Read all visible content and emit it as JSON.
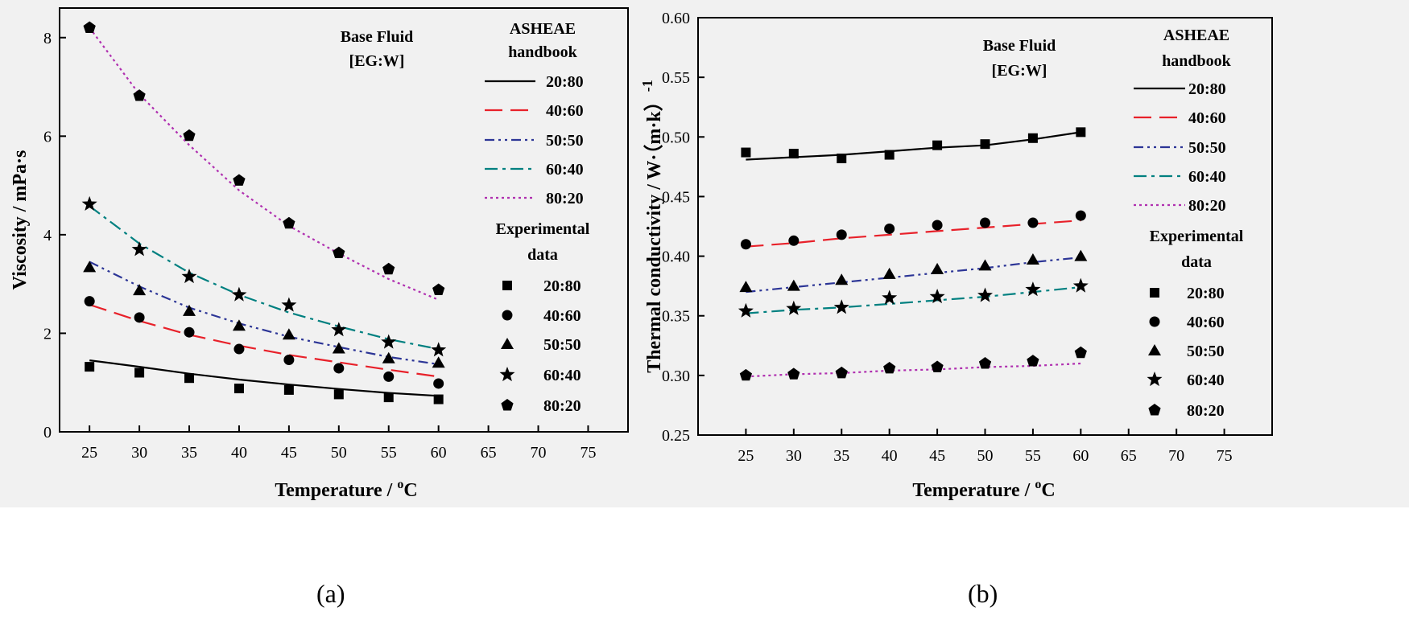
{
  "captions": [
    "(a)",
    "(b)"
  ],
  "chart_data": [
    {
      "type": "line",
      "ylabel": "Viscosity /   mPa·s",
      "xlabel_main": "Temperature / ",
      "xlabel_sup": "o",
      "xlabel_unit": "C",
      "xlim": [
        22,
        79
      ],
      "ylim": [
        0,
        8.6
      ],
      "xticks": [
        25,
        30,
        35,
        40,
        45,
        50,
        55,
        60,
        65,
        70,
        75
      ],
      "yticks": [
        0,
        2,
        4,
        6,
        8
      ],
      "ytick_labels": [
        "0",
        "2",
        "4",
        "6",
        "8"
      ],
      "annotation": [
        "Base Fluid",
        "[EG:W]"
      ],
      "legend_line_title": [
        "ASHEAE",
        "handbook"
      ],
      "legend_marker_title": [
        "Experimental",
        "data"
      ],
      "line_series": [
        {
          "name": "20:80",
          "color": "#000000",
          "style": "solid",
          "x": [
            25,
            30,
            35,
            40,
            45,
            50,
            55,
            60
          ],
          "y": [
            1.45,
            1.32,
            1.18,
            1.06,
            0.96,
            0.87,
            0.79,
            0.73
          ]
        },
        {
          "name": "40:60",
          "color": "#e8212a",
          "style": "dash",
          "x": [
            25,
            30,
            35,
            40,
            45,
            50,
            55,
            60
          ],
          "y": [
            2.58,
            2.25,
            1.97,
            1.75,
            1.56,
            1.41,
            1.26,
            1.12
          ]
        },
        {
          "name": "50:50",
          "color": "#2c3596",
          "style": "dashdotdot",
          "x": [
            25,
            30,
            35,
            40,
            45,
            50,
            55,
            60
          ],
          "y": [
            3.45,
            2.95,
            2.52,
            2.2,
            1.93,
            1.72,
            1.52,
            1.37
          ]
        },
        {
          "name": "60:40",
          "color": "#008080",
          "style": "dashdot",
          "x": [
            25,
            30,
            35,
            40,
            45,
            50,
            55,
            60
          ],
          "y": [
            4.58,
            3.82,
            3.23,
            2.78,
            2.42,
            2.14,
            1.88,
            1.68
          ]
        },
        {
          "name": "80:20",
          "color": "#b030b0",
          "style": "dot",
          "x": [
            25,
            30,
            35,
            40,
            45,
            50,
            55,
            60
          ],
          "y": [
            8.2,
            6.85,
            5.82,
            4.9,
            4.18,
            3.62,
            3.1,
            2.68
          ]
        }
      ],
      "marker_series": [
        {
          "name": "20:80",
          "marker": "square",
          "x": [
            25,
            30,
            35,
            40,
            45,
            50,
            55,
            60
          ],
          "y": [
            1.32,
            1.2,
            1.09,
            0.88,
            0.85,
            0.76,
            0.7,
            0.66
          ]
        },
        {
          "name": "40:60",
          "marker": "circle",
          "x": [
            25,
            30,
            35,
            40,
            45,
            50,
            55,
            60
          ],
          "y": [
            2.65,
            2.32,
            2.02,
            1.68,
            1.46,
            1.29,
            1.12,
            0.98
          ]
        },
        {
          "name": "50:50",
          "marker": "triangle",
          "x": [
            25,
            30,
            35,
            40,
            45,
            50,
            55,
            60
          ],
          "y": [
            3.34,
            2.87,
            2.45,
            2.15,
            1.97,
            1.69,
            1.49,
            1.4
          ]
        },
        {
          "name": "60:40",
          "marker": "star",
          "x": [
            25,
            30,
            35,
            40,
            45,
            50,
            55,
            60
          ],
          "y": [
            4.62,
            3.7,
            3.15,
            2.78,
            2.57,
            2.07,
            1.82,
            1.66
          ]
        },
        {
          "name": "80:20",
          "marker": "pentagon",
          "x": [
            25,
            30,
            35,
            40,
            45,
            50,
            55,
            60
          ],
          "y": [
            8.2,
            6.82,
            6.01,
            5.1,
            4.23,
            3.63,
            3.3,
            2.88
          ]
        }
      ]
    },
    {
      "type": "line",
      "ylabel": "Thermal conductivity  / W·（m·k）",
      "ylabel_sup": "-1",
      "xlabel_main": "Temperature / ",
      "xlabel_sup": "o",
      "xlabel_unit": "C",
      "xlim": [
        20,
        80
      ],
      "ylim": [
        0.25,
        0.6
      ],
      "xticks": [
        25,
        30,
        35,
        40,
        45,
        50,
        55,
        60,
        65,
        70,
        75
      ],
      "yticks": [
        0.25,
        0.3,
        0.35,
        0.4,
        0.45,
        0.5,
        0.55,
        0.6
      ],
      "ytick_labels": [
        "0.25",
        "0.30",
        "0.35",
        "0.40",
        "0.45",
        "0.50",
        "0.55",
        "0.60"
      ],
      "annotation": [
        "Base Fluid",
        "[EG:W]"
      ],
      "legend_line_title": [
        "ASHEAE",
        "handbook"
      ],
      "legend_marker_title": [
        "Experimental",
        "data"
      ],
      "line_series": [
        {
          "name": "20:80",
          "color": "#000000",
          "style": "solid",
          "x": [
            25,
            30,
            35,
            40,
            45,
            50,
            55,
            60
          ],
          "y": [
            0.481,
            0.483,
            0.485,
            0.488,
            0.491,
            0.493,
            0.498,
            0.504
          ]
        },
        {
          "name": "40:60",
          "color": "#e8212a",
          "style": "dash",
          "x": [
            25,
            30,
            35,
            40,
            45,
            50,
            55,
            60
          ],
          "y": [
            0.408,
            0.411,
            0.415,
            0.418,
            0.421,
            0.424,
            0.427,
            0.43
          ]
        },
        {
          "name": "50:50",
          "color": "#2c3596",
          "style": "dashdotdot",
          "x": [
            25,
            30,
            35,
            40,
            45,
            50,
            55,
            60
          ],
          "y": [
            0.37,
            0.374,
            0.378,
            0.382,
            0.386,
            0.39,
            0.395,
            0.399
          ]
        },
        {
          "name": "60:40",
          "color": "#008080",
          "style": "dashdot",
          "x": [
            25,
            30,
            35,
            40,
            45,
            50,
            55,
            60
          ],
          "y": [
            0.352,
            0.355,
            0.357,
            0.36,
            0.363,
            0.366,
            0.37,
            0.374
          ]
        },
        {
          "name": "80:20",
          "color": "#b030b0",
          "style": "dot",
          "x": [
            25,
            30,
            35,
            40,
            45,
            50,
            55,
            60
          ],
          "y": [
            0.299,
            0.301,
            0.302,
            0.304,
            0.305,
            0.307,
            0.308,
            0.31
          ]
        }
      ],
      "marker_series": [
        {
          "name": "20:80",
          "marker": "square",
          "x": [
            25,
            30,
            35,
            40,
            45,
            50,
            55,
            60
          ],
          "y": [
            0.487,
            0.486,
            0.482,
            0.485,
            0.493,
            0.494,
            0.499,
            0.504
          ]
        },
        {
          "name": "40:60",
          "marker": "circle",
          "x": [
            25,
            30,
            35,
            40,
            45,
            50,
            55,
            60
          ],
          "y": [
            0.41,
            0.413,
            0.418,
            0.423,
            0.426,
            0.428,
            0.428,
            0.434
          ]
        },
        {
          "name": "50:50",
          "marker": "triangle",
          "x": [
            25,
            30,
            35,
            40,
            45,
            50,
            55,
            60
          ],
          "y": [
            0.374,
            0.375,
            0.38,
            0.385,
            0.389,
            0.392,
            0.397,
            0.4
          ]
        },
        {
          "name": "60:40",
          "marker": "star",
          "x": [
            25,
            30,
            35,
            40,
            45,
            50,
            55,
            60
          ],
          "y": [
            0.354,
            0.356,
            0.357,
            0.365,
            0.366,
            0.367,
            0.372,
            0.375
          ]
        },
        {
          "name": "80:20",
          "marker": "pentagon",
          "x": [
            25,
            30,
            35,
            40,
            45,
            50,
            55,
            60
          ],
          "y": [
            0.3,
            0.301,
            0.302,
            0.306,
            0.307,
            0.31,
            0.312,
            0.319
          ]
        }
      ]
    }
  ]
}
